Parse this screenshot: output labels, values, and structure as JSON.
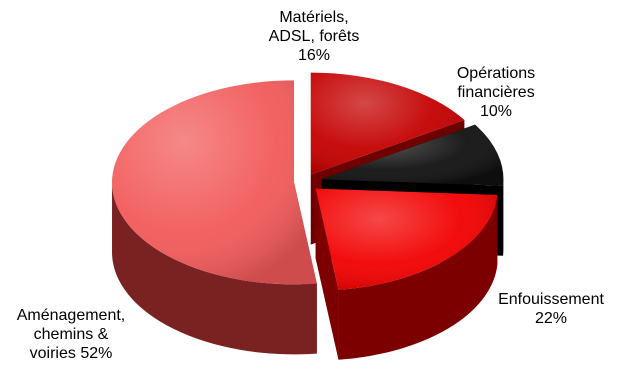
{
  "chart_data": {
    "type": "pie",
    "categories": [
      "Matériels,\nADSL, forêts",
      "Opérations\nfinancières",
      "Enfouissement",
      "Aménagement,\nchemins &\nvoiries"
    ],
    "values": [
      16,
      10,
      22,
      52
    ],
    "labels": [
      "Matériels,\nADSL, forêts\n16%",
      "Opérations\nfinancières\n10%",
      "Enfouissement\n22%",
      "Aménagement,\nchemins &\nvoiries 52%"
    ],
    "colors": [
      "#c40000",
      "#111111",
      "#f20000",
      "#f25a5a"
    ],
    "side_colors": [
      "#6e0000",
      "#000000",
      "#7c0000",
      "#7a2222"
    ],
    "style": "3d-exploded"
  }
}
